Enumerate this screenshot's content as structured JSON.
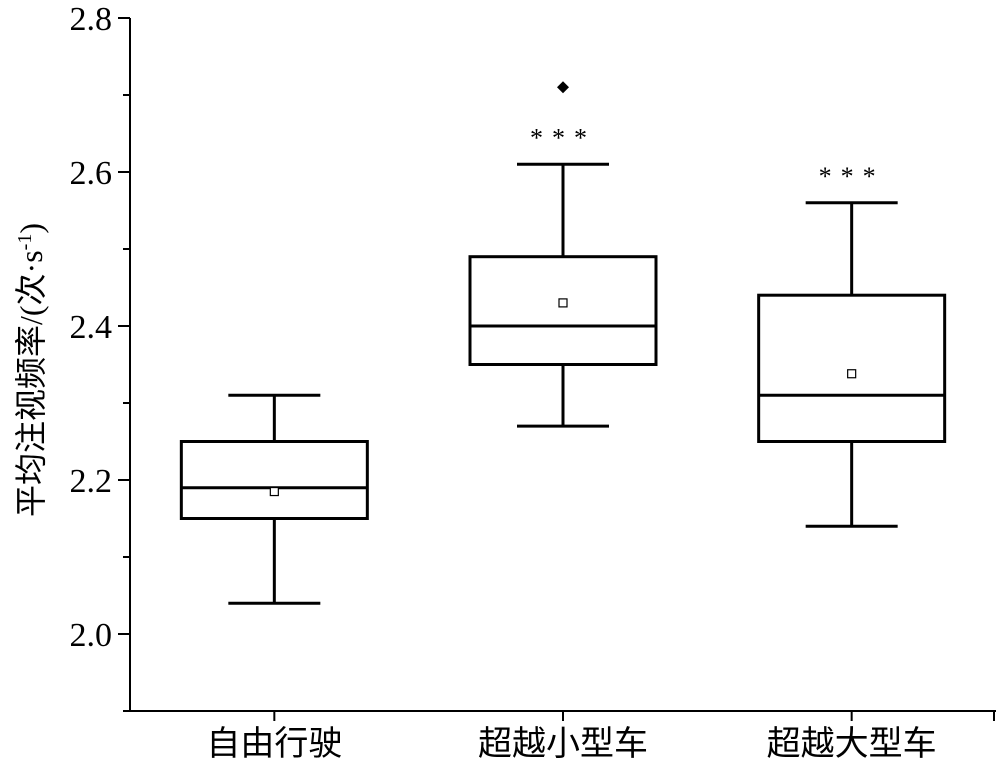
{
  "chart_data": {
    "type": "box",
    "ylabel": "平均注视频率/(次·s",
    "ylabel_sup": "-1",
    "ylabel_close": ")",
    "ylim": [
      1.9,
      2.8
    ],
    "yticks": [
      2.0,
      2.2,
      2.4,
      2.6,
      2.8
    ],
    "yticks_labels": [
      "2.0",
      "2.2",
      "2.4",
      "2.6",
      "2.8"
    ],
    "yminor_ticks": [
      1.9,
      2.1,
      2.3,
      2.5,
      2.7
    ],
    "categories": [
      "自由行驶",
      "超越小型车",
      "超越大型车"
    ],
    "boxes": [
      {
        "whisker_low": 2.04,
        "q1": 2.15,
        "median": 2.19,
        "q3": 2.25,
        "whisker_high": 2.31,
        "mean": 2.185,
        "outliers": [],
        "significance": ""
      },
      {
        "whisker_low": 2.27,
        "q1": 2.35,
        "median": 2.4,
        "q3": 2.49,
        "whisker_high": 2.61,
        "mean": 2.43,
        "outliers": [
          2.71
        ],
        "significance": "***"
      },
      {
        "whisker_low": 2.14,
        "q1": 2.25,
        "median": 2.31,
        "q3": 2.44,
        "whisker_high": 2.56,
        "mean": 2.338,
        "outliers": [],
        "significance": "***"
      }
    ],
    "grid": false,
    "legend": "none"
  }
}
